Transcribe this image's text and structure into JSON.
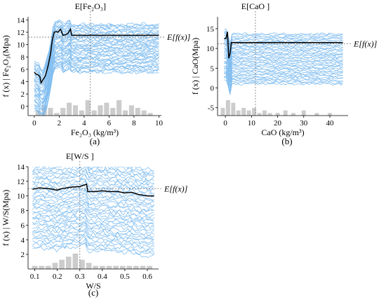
{
  "chart_data": [
    {
      "panel_label": "(a)",
      "type": "line",
      "title": "",
      "xlabel": "Fe₂O₃ (kg/m³)",
      "ylabel": "f (x) | Fe₂O₃(Mpa)",
      "xlim": [
        -0.5,
        10.2
      ],
      "ylim": [
        -1.5,
        14.5
      ],
      "xticks": [
        0,
        2,
        4,
        6,
        8,
        10
      ],
      "yticks": [
        0,
        2,
        4,
        6,
        8,
        10,
        12,
        14
      ],
      "top_label": "E[Fe₂O₃]",
      "top_marker_x": 4.5,
      "right_label": "E[f(x)]",
      "expected_value": 11.2,
      "ice_spread": {
        "min": 5.5,
        "max": 13.3,
        "count": 42
      },
      "pdp": {
        "x": [
          0,
          0.15,
          0.3,
          0.45,
          0.55,
          0.7,
          0.9,
          1.1,
          1.3,
          1.45,
          1.6,
          1.75,
          1.9,
          2.1,
          2.3,
          2.5,
          2.7,
          2.9,
          3.0,
          10
        ],
        "y": [
          5.5,
          5.2,
          5.1,
          4.8,
          3.8,
          4.3,
          5.0,
          6.5,
          8.5,
          10.8,
          12.0,
          12.1,
          12.0,
          12.5,
          11.5,
          11.6,
          11.8,
          12.5,
          11.5,
          11.5
        ]
      },
      "histogram": {
        "x": [
          0.3,
          0.8,
          1.3,
          1.8,
          2.3,
          2.8,
          3.3,
          3.8,
          4.3,
          4.8,
          5.3,
          5.8,
          6.3,
          6.8,
          7.3,
          7.8,
          8.3,
          8.8,
          9.3
        ],
        "counts": [
          2,
          4,
          3,
          1,
          3,
          5,
          4,
          2,
          6,
          2,
          4,
          5,
          3,
          6,
          2,
          4,
          3,
          2,
          1
        ]
      }
    },
    {
      "panel_label": "(b)",
      "type": "line",
      "title": "",
      "xlabel": "CaO (kg/m³)",
      "ylabel": "f (x) | CaO(Mpa)",
      "xlim": [
        -3,
        47
      ],
      "ylim": [
        -7,
        18
      ],
      "xticks": [
        0,
        10,
        20,
        30,
        40
      ],
      "yticks": [
        -5,
        0,
        5,
        10,
        15
      ],
      "top_label": "E[CaO ]",
      "top_marker_x": 11.5,
      "right_label": "E[f(x)]",
      "expected_value": 11.2,
      "ice_spread": {
        "min": 1.0,
        "max": 13.7,
        "count": 40
      },
      "pdp": {
        "x": [
          -0.5,
          0.2,
          0.8,
          1.3,
          1.8,
          2.3,
          2.8,
          45
        ],
        "y": [
          12.5,
          12.5,
          14.2,
          7.5,
          8.8,
          11.5,
          11.5,
          11.5
        ]
      },
      "histogram": {
        "x": [
          -1,
          1,
          3,
          5,
          7,
          9,
          11,
          13,
          15,
          17,
          20,
          23,
          26,
          30,
          35,
          40
        ],
        "counts": [
          3,
          6,
          5,
          2,
          3,
          2,
          3,
          1,
          2,
          1,
          1,
          2,
          1,
          2,
          1,
          1
        ]
      }
    },
    {
      "panel_label": "(c)",
      "type": "line",
      "title": "",
      "xlabel": "W/S",
      "ylabel": "f (x) | W/S(Mpa)",
      "xlim": [
        0.07,
        0.65
      ],
      "ylim": [
        0,
        14
      ],
      "xticks": [
        0.1,
        0.2,
        0.3,
        0.4,
        0.5,
        0.6
      ],
      "yticks": [
        2,
        4,
        6,
        8,
        10,
        12,
        14
      ],
      "top_label": "E[W/S ]",
      "top_marker_x": 0.3,
      "right_label": "E[f(x)]",
      "expected_value": 11.0,
      "ice_spread": {
        "min": 1.8,
        "max": 13.6,
        "count": 40
      },
      "pdp": {
        "x": [
          0.09,
          0.12,
          0.16,
          0.2,
          0.22,
          0.26,
          0.3,
          0.33,
          0.335,
          0.37,
          0.4,
          0.43,
          0.47,
          0.5,
          0.53,
          0.56,
          0.6,
          0.63
        ],
        "y": [
          10.9,
          11.1,
          11.0,
          10.8,
          11.0,
          11.2,
          11.3,
          11.6,
          10.6,
          10.6,
          10.7,
          10.6,
          10.6,
          10.4,
          10.5,
          10.2,
          10.0,
          10.0
        ]
      },
      "histogram": {
        "x": [
          0.1,
          0.13,
          0.16,
          0.19,
          0.22,
          0.25,
          0.28,
          0.31,
          0.34,
          0.37,
          0.4,
          0.43,
          0.46,
          0.49,
          0.52,
          0.55,
          0.58,
          0.61
        ],
        "counts": [
          1,
          1,
          1,
          2,
          3,
          4,
          5,
          3,
          2,
          1,
          1,
          1,
          1,
          1,
          1,
          1,
          1,
          1
        ]
      }
    }
  ],
  "colors": {
    "ice_line": "#6fb4ee",
    "pdp_line": "#000000",
    "histogram": "#cccccc",
    "reference_line": "#777777"
  }
}
